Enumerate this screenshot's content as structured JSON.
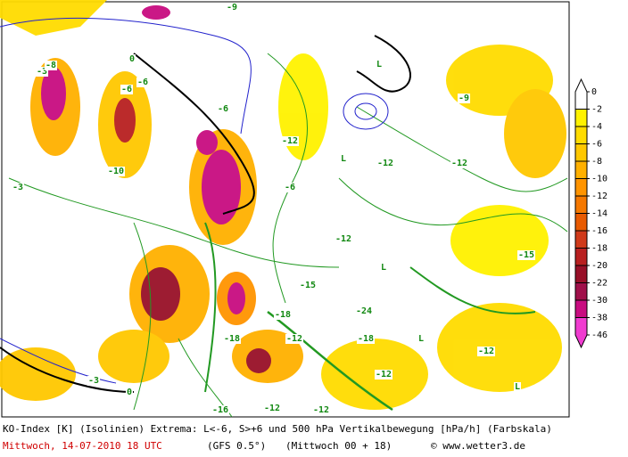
{
  "caption": {
    "line1": "KO-Index [K] (Isolinien) Extrema: L<-6, S>+6 und 500 hPa Vertikalbewegung [hPa/h] (Farbskala)",
    "date": "Mittwoch, 14-07-2010  18 UTC",
    "model": "(GFS 0.5°)",
    "run": "(Mittwoch 00 + 18)",
    "credit": "© www.wetter3.de"
  },
  "colorbar": {
    "labels": [
      0,
      -2,
      -4,
      -6,
      -8,
      -10,
      -12,
      -14,
      -16,
      -18,
      -20,
      -22,
      -30,
      -38,
      -46
    ],
    "colors": [
      "#ffffff",
      "#fff200",
      "#ffdc00",
      "#ffc800",
      "#ffb000",
      "#ff9400",
      "#f57800",
      "#e85a00",
      "#d03a1a",
      "#b82020",
      "#981028",
      "#a0104a",
      "#c80c80",
      "#f03cd0"
    ]
  },
  "map_labels": [
    "-9",
    "-6",
    "0",
    "-3",
    "-8",
    "-6",
    "-10",
    "-12",
    "L",
    "-12",
    "-6",
    "L",
    "-3",
    "-9",
    "-12",
    "-12",
    "L",
    "-18",
    "-12",
    "-15",
    "-24",
    "-18",
    "L",
    "-12",
    "-16",
    "-12",
    "-18",
    "-12",
    "-15",
    "L",
    "-12",
    "0",
    "-3",
    "-6"
  ]
}
